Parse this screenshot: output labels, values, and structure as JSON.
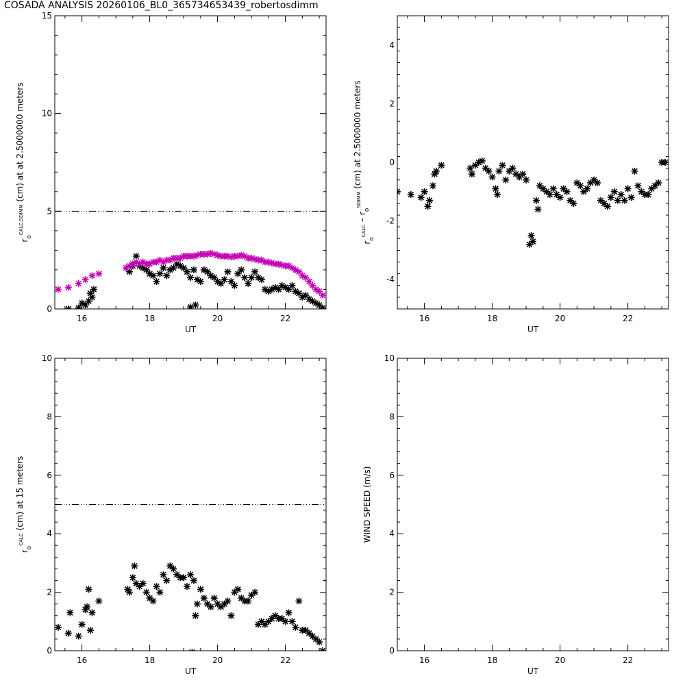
{
  "page_title": "COSADA ANALYSIS 20260106_BL0_365734653439_robertosdimm",
  "colors": {
    "axes": "#000000",
    "series_black": "#000000",
    "series_magenta": "#c400b4"
  },
  "chart_data": [
    {
      "type": "scatter",
      "xlabel": "UT",
      "ylabel": "r_o^CALC,SDIMM (cm) at at 2.5000000 meters",
      "ylabel_parts": [
        "r",
        "o",
        "CALC,SDIMM",
        " (cm) at  at 2.5000000 meters"
      ],
      "xlim": [
        15.2,
        23.2
      ],
      "ylim": [
        0,
        15
      ],
      "xticks": [
        16,
        18,
        20,
        22
      ],
      "yticks": [
        0,
        5,
        10,
        15
      ],
      "ref_line": 5,
      "series": [
        {
          "color": "#000000",
          "marker": "asterisk",
          "x": [
            15.6,
            15.9,
            16.0,
            16.1,
            16.2,
            16.25,
            16.3,
            16.35,
            17.4,
            17.5,
            17.6,
            17.7,
            17.8,
            17.9,
            18.0,
            18.1,
            18.2,
            18.3,
            18.4,
            18.5,
            18.6,
            18.7,
            18.8,
            18.9,
            19.0,
            19.1,
            19.2,
            19.3,
            19.4,
            19.5,
            19.6,
            19.7,
            19.8,
            19.9,
            20.0,
            20.1,
            20.2,
            20.3,
            20.4,
            20.5,
            20.6,
            20.7,
            20.8,
            20.9,
            21.0,
            21.1,
            21.2,
            21.3,
            21.4,
            21.5,
            21.6,
            21.7,
            21.8,
            21.9,
            22.0,
            22.1,
            22.2,
            22.3,
            22.4,
            22.5,
            22.6,
            22.7,
            22.8,
            22.9,
            23.0,
            23.1,
            19.2,
            19.35
          ],
          "y": [
            0.0,
            0.05,
            0.3,
            0.2,
            0.4,
            0.8,
            0.6,
            1.0,
            1.9,
            2.2,
            2.7,
            2.2,
            2.1,
            2.0,
            1.8,
            1.7,
            1.4,
            1.8,
            2.1,
            1.7,
            2.0,
            2.1,
            2.3,
            2.2,
            2.1,
            1.9,
            1.6,
            2.0,
            1.5,
            1.4,
            2.0,
            1.9,
            1.7,
            1.6,
            1.4,
            1.3,
            1.5,
            1.9,
            1.4,
            1.2,
            1.8,
            2.0,
            1.6,
            1.3,
            1.6,
            1.9,
            1.6,
            1.5,
            1.0,
            0.9,
            1.0,
            1.1,
            1.0,
            1.2,
            1.1,
            1.0,
            1.2,
            0.9,
            0.8,
            0.6,
            0.7,
            0.5,
            0.4,
            0.3,
            0.2,
            0.05,
            0.1,
            0.2
          ]
        },
        {
          "color": "#c400b4",
          "marker": "asterisk",
          "x": [
            15.3,
            15.6,
            15.9,
            16.1,
            16.3,
            16.5,
            17.3,
            17.4,
            17.5,
            17.6,
            17.7,
            17.8,
            17.9,
            18.0,
            18.1,
            18.2,
            18.3,
            18.4,
            18.5,
            18.6,
            18.7,
            18.8,
            18.9,
            19.0,
            19.1,
            19.2,
            19.3,
            19.4,
            19.5,
            19.6,
            19.7,
            19.8,
            19.9,
            20.0,
            20.1,
            20.2,
            20.3,
            20.4,
            20.5,
            20.6,
            20.7,
            20.8,
            20.9,
            21.0,
            21.1,
            21.2,
            21.3,
            21.4,
            21.5,
            21.6,
            21.7,
            21.8,
            21.9,
            22.0,
            22.1,
            22.2,
            22.3,
            22.4,
            22.5,
            22.6,
            22.7,
            22.8,
            22.9,
            23.0,
            23.1
          ],
          "y": [
            1.0,
            1.1,
            1.3,
            1.5,
            1.7,
            1.8,
            2.1,
            2.2,
            2.3,
            2.4,
            2.3,
            2.4,
            2.3,
            2.3,
            2.4,
            2.4,
            2.5,
            2.4,
            2.5,
            2.5,
            2.6,
            2.6,
            2.6,
            2.7,
            2.7,
            2.7,
            2.7,
            2.75,
            2.8,
            2.8,
            2.8,
            2.85,
            2.8,
            2.75,
            2.7,
            2.7,
            2.7,
            2.65,
            2.7,
            2.7,
            2.75,
            2.7,
            2.6,
            2.6,
            2.55,
            2.5,
            2.5,
            2.4,
            2.4,
            2.35,
            2.3,
            2.3,
            2.25,
            2.2,
            2.2,
            2.1,
            2.0,
            1.9,
            1.7,
            1.6,
            1.4,
            1.2,
            1.0,
            0.9,
            0.7
          ]
        }
      ]
    },
    {
      "type": "scatter",
      "xlabel": "UT",
      "ylabel": "r_o^CALC – r_o^SDIMM (cm) at 2.5000000 meters",
      "ylabel_parts": [
        "r",
        "o",
        "CALC",
        "  – r",
        "o",
        "SDIMM",
        " (cm) at 2.5000000 meters"
      ],
      "xlim": [
        15.2,
        23.2
      ],
      "ylim": [
        -5,
        5
      ],
      "xticks": [
        16,
        18,
        20,
        22
      ],
      "yticks": [
        -4,
        -2,
        0,
        2,
        4
      ],
      "series": [
        {
          "color": "#000000",
          "marker": "asterisk",
          "x": [
            15.2,
            15.6,
            15.9,
            16.0,
            16.1,
            16.15,
            16.25,
            16.3,
            16.35,
            16.5,
            17.35,
            17.4,
            17.5,
            17.6,
            17.7,
            17.8,
            17.9,
            18.0,
            18.1,
            18.15,
            18.2,
            18.3,
            18.4,
            18.5,
            18.6,
            18.7,
            18.8,
            18.9,
            19.0,
            19.1,
            19.15,
            19.2,
            19.3,
            19.35,
            19.4,
            19.5,
            19.6,
            19.7,
            19.8,
            19.9,
            20.0,
            20.1,
            20.2,
            20.3,
            20.4,
            20.5,
            20.6,
            20.7,
            20.8,
            20.9,
            21.0,
            21.1,
            21.2,
            21.3,
            21.4,
            21.5,
            21.6,
            21.7,
            21.8,
            21.9,
            22.0,
            22.1,
            22.2,
            22.3,
            22.4,
            22.5,
            22.6,
            22.7,
            22.8,
            22.9,
            23.0,
            23.1
          ],
          "y": [
            -1.0,
            -1.1,
            -1.2,
            -1.0,
            -1.5,
            -1.3,
            -0.8,
            -0.4,
            -0.3,
            -0.1,
            -0.2,
            -0.4,
            -0.1,
            0.0,
            0.05,
            -0.2,
            -0.3,
            -0.5,
            -0.9,
            -1.1,
            -0.3,
            -0.1,
            -0.6,
            -0.3,
            -0.2,
            -0.4,
            -0.5,
            -0.4,
            -0.6,
            -2.8,
            -2.5,
            -2.7,
            -1.3,
            -1.6,
            -0.8,
            -0.9,
            -1.0,
            -1.1,
            -0.9,
            -1.1,
            -1.2,
            -0.9,
            -1.0,
            -1.3,
            -1.4,
            -0.7,
            -0.8,
            -1.0,
            -0.9,
            -0.7,
            -0.6,
            -0.7,
            -1.3,
            -1.4,
            -1.5,
            -1.2,
            -1.0,
            -1.3,
            -1.1,
            -1.3,
            -0.9,
            -1.2,
            -0.3,
            -0.8,
            -1.0,
            -1.1,
            -1.1,
            -0.9,
            -0.8,
            -0.7,
            0.0,
            0.0
          ]
        }
      ]
    },
    {
      "type": "scatter",
      "xlabel": "UT",
      "ylabel": "r_o^CALC (cm) at 15 meters",
      "ylabel_parts": [
        "r",
        "o",
        "CALC",
        " (cm) at 15 meters"
      ],
      "xlim": [
        15.2,
        23.2
      ],
      "ylim": [
        0,
        10
      ],
      "xticks": [
        16,
        18,
        20,
        22
      ],
      "yticks": [
        0,
        2,
        4,
        6,
        8,
        10
      ],
      "ref_line": 5,
      "series": [
        {
          "color": "#000000",
          "marker": "asterisk",
          "x": [
            15.3,
            15.6,
            15.65,
            15.9,
            16.0,
            16.1,
            16.15,
            16.2,
            16.25,
            16.3,
            16.5,
            17.35,
            17.4,
            17.5,
            17.55,
            17.6,
            17.7,
            17.8,
            17.9,
            18.0,
            18.1,
            18.2,
            18.3,
            18.4,
            18.5,
            18.6,
            18.7,
            18.8,
            18.9,
            19.0,
            19.1,
            19.2,
            19.3,
            19.35,
            19.4,
            19.5,
            19.6,
            19.7,
            19.8,
            19.9,
            20.0,
            20.1,
            20.2,
            20.3,
            20.4,
            20.5,
            20.6,
            20.7,
            20.8,
            20.9,
            21.0,
            21.1,
            21.2,
            21.3,
            21.4,
            21.5,
            21.6,
            21.7,
            21.8,
            21.9,
            22.0,
            22.1,
            22.2,
            22.3,
            22.4,
            22.5,
            22.6,
            22.7,
            22.8,
            22.9,
            23.0,
            23.1,
            19.25
          ],
          "y": [
            0.8,
            0.6,
            1.3,
            0.5,
            0.9,
            1.4,
            1.5,
            2.1,
            0.7,
            1.3,
            1.7,
            2.1,
            2.0,
            2.5,
            2.9,
            2.3,
            2.2,
            2.3,
            2.0,
            1.8,
            1.7,
            2.2,
            2.0,
            2.6,
            2.4,
            2.9,
            2.8,
            2.6,
            2.5,
            2.5,
            2.2,
            2.6,
            2.4,
            1.2,
            1.6,
            2.1,
            1.8,
            1.6,
            1.5,
            1.8,
            1.6,
            1.5,
            1.6,
            1.7,
            1.2,
            2.0,
            2.1,
            1.8,
            1.7,
            1.7,
            1.9,
            2.0,
            0.9,
            1.0,
            0.9,
            1.0,
            1.1,
            1.2,
            1.1,
            1.1,
            1.0,
            1.3,
            1.0,
            0.8,
            1.7,
            0.7,
            0.7,
            0.6,
            0.5,
            0.4,
            0.3,
            0.0,
            -0.05
          ]
        }
      ]
    },
    {
      "type": "scatter",
      "xlabel": "UT",
      "ylabel": "WIND SPEED (m/s)",
      "ylabel_parts": [
        "WIND SPEED (m/s)"
      ],
      "xlim": [
        15.2,
        23.2
      ],
      "ylim": [
        0,
        10
      ],
      "xticks": [
        16,
        18,
        20,
        22
      ],
      "yticks": [
        0,
        2,
        4,
        6,
        8,
        10
      ],
      "series": []
    }
  ]
}
